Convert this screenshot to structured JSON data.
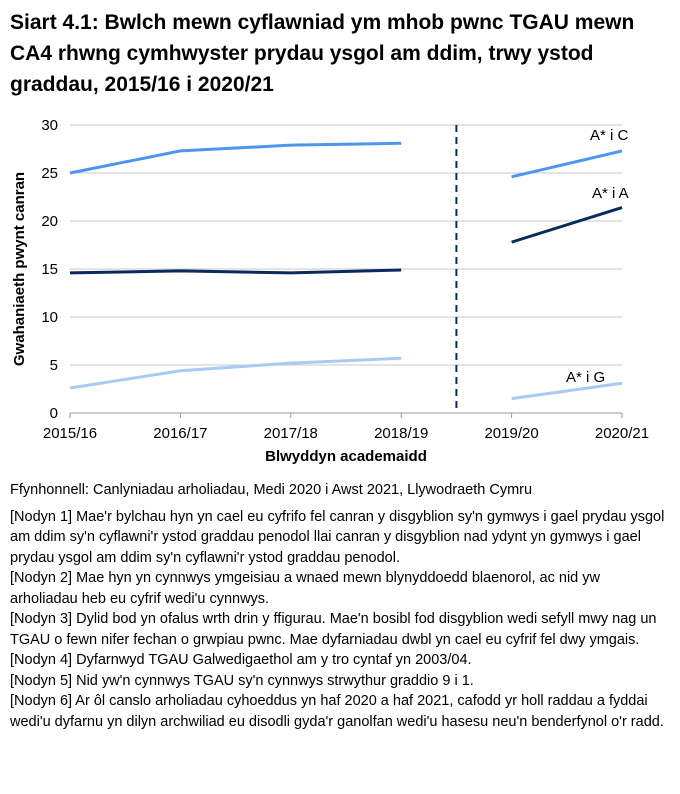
{
  "title": "Siart 4.1: Bwlch mewn cyflawniad ym mhob pwnc TGAU mewn CA4 rhwng cymhwyster prydau ysgol am ddim, trwy ystod graddau, 2015/16 i 2020/21",
  "chart_data": {
    "type": "line",
    "title": "Siart 4.1: Bwlch mewn cyflawniad ym mhob pwnc TGAU mewn CA4 rhwng cymhwyster prydau ysgol am ddim, trwy ystod graddau, 2015/16 i 2020/21",
    "xlabel": "Blwyddyn academaidd",
    "ylabel": "Gwahaniaeth pwynt canran",
    "categories": [
      "2015/16",
      "2016/17",
      "2017/18",
      "2018/19",
      "2019/20",
      "2020/21"
    ],
    "ylim": [
      0,
      30
    ],
    "yticks": [
      "0",
      "5",
      "10",
      "15",
      "20",
      "25",
      "30"
    ],
    "grid": true,
    "break_between": [
      "2018/19",
      "2019/20"
    ],
    "series": [
      {
        "name": "A* i C",
        "color": "#4e95ee",
        "values": [
          25.0,
          27.3,
          27.9,
          28.1,
          24.6,
          27.3
        ]
      },
      {
        "name": "A* i A",
        "color": "#0b2a5c",
        "values": [
          14.6,
          14.8,
          14.6,
          14.9,
          17.8,
          21.4
        ]
      },
      {
        "name": "A* i G",
        "color": "#a8cbf6",
        "values": [
          2.6,
          4.4,
          5.2,
          5.7,
          1.5,
          3.1
        ]
      }
    ]
  },
  "source": "Ffynhonnell: Canlyniadau arholiadau, Medi 2020 i Awst 2021, Llywodraeth Cymru",
  "notes": [
    "[Nodyn 1] Mae'r bylchau hyn yn cael eu cyfrifo fel canran y disgyblion sy'n gymwys i gael prydau ysgol am ddim sy'n cyflawni'r ystod graddau penodol llai canran y disgyblion nad ydynt yn gymwys i gael prydau ysgol am ddim sy'n cyflawni'r ystod graddau penodol.",
    "[Nodyn 2] Mae hyn yn cynnwys ymgeisiau a wnaed mewn blynyddoedd blaenorol, ac nid yw arholiadau heb eu cyfrif wedi'u cynnwys.",
    "[Nodyn 3] Dylid bod yn ofalus wrth drin y ffigurau. Mae'n bosibl fod disgyblion wedi sefyll mwy nag un TGAU o fewn nifer fechan o grwpiau pwnc. Mae dyfarniadau dwbl yn cael eu cyfrif fel dwy ymgais.",
    "[Nodyn 4] Dyfarnwyd TGAU Galwedigaethol am y tro cyntaf yn 2003/04.",
    "[Nodyn 5] Nid yw'n cynnwys TGAU sy'n cynnwys strwythur graddio 9 i 1.",
    "[Nodyn 6] Ar ôl canslo arholiadau cyhoeddus yn haf 2020 a haf 2021, cafodd yr holl raddau a fyddai wedi'u dyfarnu yn dilyn archwiliad eu disodli gyda'r ganolfan wedi'u hasesu neu'n benderfynol o'r radd."
  ]
}
